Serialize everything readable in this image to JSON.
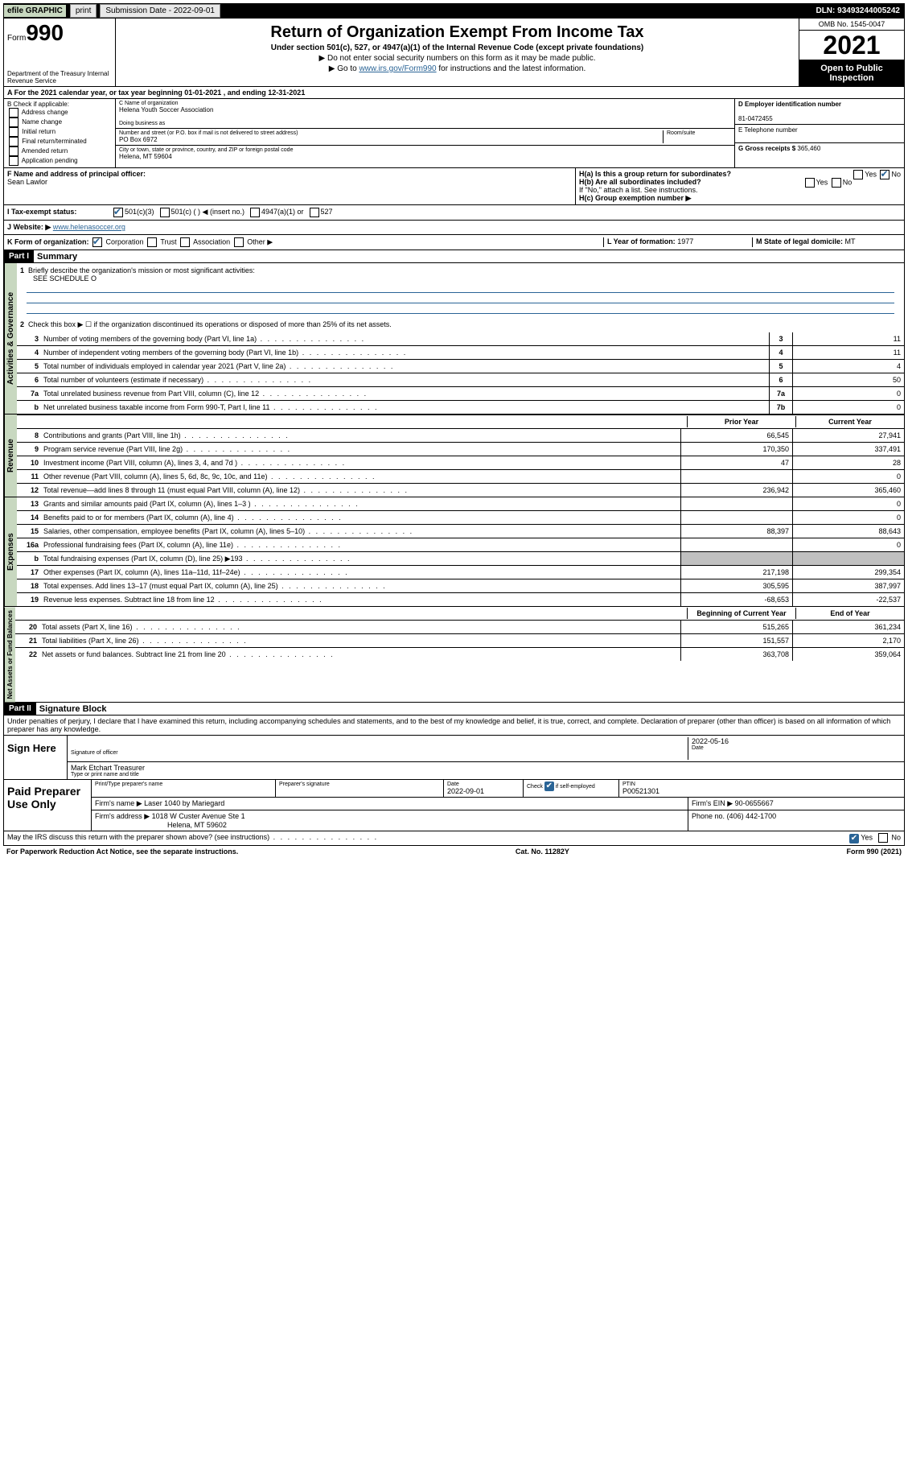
{
  "topbar": {
    "efile": "efile GRAPHIC",
    "print": "print",
    "submission": "Submission Date - 2022-09-01",
    "dln": "DLN: 93493244005242"
  },
  "header": {
    "form_prefix": "Form",
    "form_number": "990",
    "dept": "Department of the Treasury Internal Revenue Service",
    "title": "Return of Organization Exempt From Income Tax",
    "subtitle": "Under section 501(c), 527, or 4947(a)(1) of the Internal Revenue Code (except private foundations)",
    "note1": "▶ Do not enter social security numbers on this form as it may be made public.",
    "note2_pre": "▶ Go to ",
    "note2_link": "www.irs.gov/Form990",
    "note2_post": " for instructions and the latest information.",
    "omb": "OMB No. 1545-0047",
    "year": "2021",
    "open": "Open to Public Inspection"
  },
  "row_a": "A For the 2021 calendar year, or tax year beginning 01-01-2021  , and ending 12-31-2021",
  "col_b": {
    "label": "B Check if applicable:",
    "items": [
      "Address change",
      "Name change",
      "Initial return",
      "Final return/terminated",
      "Amended return",
      "Application pending"
    ]
  },
  "col_c": {
    "name_label": "C Name of organization",
    "name": "Helena Youth Soccer Association",
    "dba_label": "Doing business as",
    "addr_label": "Number and street (or P.O. box if mail is not delivered to street address)",
    "room_label": "Room/suite",
    "addr": "PO Box 6972",
    "city_label": "City or town, state or province, country, and ZIP or foreign postal code",
    "city": "Helena, MT  59604"
  },
  "col_d": {
    "label": "D Employer identification number",
    "ein": "81-0472455",
    "e_label": "E Telephone number",
    "g_label": "G Gross receipts $",
    "g_val": "365,460"
  },
  "f": {
    "label": "F Name and address of principal officer:",
    "name": "Sean Lawlor"
  },
  "h": {
    "ha": "H(a)  Is this a group return for subordinates?",
    "ha_no": "No",
    "hb": "H(b)  Are all subordinates included?",
    "hb_note": "If \"No,\" attach a list. See instructions.",
    "hc": "H(c)  Group exemption number ▶"
  },
  "i": {
    "label": "I  Tax-exempt status:",
    "opts": [
      "501(c)(3)",
      "501(c) (  ) ◀ (insert no.)",
      "4947(a)(1) or",
      "527"
    ]
  },
  "j": {
    "label": "J  Website: ▶",
    "val": "www.helenasoccer.org"
  },
  "k": {
    "label": "K Form of organization:",
    "opts": [
      "Corporation",
      "Trust",
      "Association",
      "Other ▶"
    ]
  },
  "l": {
    "label": "L Year of formation:",
    "val": "1977"
  },
  "m": {
    "label": "M State of legal domicile:",
    "val": "MT"
  },
  "part1": {
    "header": "Part I",
    "title": "Summary",
    "line1_label": "Briefly describe the organization's mission or most significant activities:",
    "line1_val": "SEE SCHEDULE O",
    "line2": "Check this box ▶ ☐ if the organization discontinued its operations or disposed of more than 25% of its net assets.",
    "gov_lines": [
      {
        "n": "3",
        "t": "Number of voting members of the governing body (Part VI, line 1a)",
        "box": "3",
        "v": "11"
      },
      {
        "n": "4",
        "t": "Number of independent voting members of the governing body (Part VI, line 1b)",
        "box": "4",
        "v": "11"
      },
      {
        "n": "5",
        "t": "Total number of individuals employed in calendar year 2021 (Part V, line 2a)",
        "box": "5",
        "v": "4"
      },
      {
        "n": "6",
        "t": "Total number of volunteers (estimate if necessary)",
        "box": "6",
        "v": "50"
      },
      {
        "n": "7a",
        "t": "Total unrelated business revenue from Part VIII, column (C), line 12",
        "box": "7a",
        "v": "0"
      },
      {
        "n": "b",
        "t": "Net unrelated business taxable income from Form 990-T, Part I, line 11",
        "box": "7b",
        "v": "0"
      }
    ],
    "col_headers": {
      "prior": "Prior Year",
      "current": "Current Year"
    },
    "rev_lines": [
      {
        "n": "8",
        "t": "Contributions and grants (Part VIII, line 1h)",
        "p": "66,545",
        "c": "27,941"
      },
      {
        "n": "9",
        "t": "Program service revenue (Part VIII, line 2g)",
        "p": "170,350",
        "c": "337,491"
      },
      {
        "n": "10",
        "t": "Investment income (Part VIII, column (A), lines 3, 4, and 7d )",
        "p": "47",
        "c": "28"
      },
      {
        "n": "11",
        "t": "Other revenue (Part VIII, column (A), lines 5, 6d, 8c, 9c, 10c, and 11e)",
        "p": "",
        "c": "0"
      },
      {
        "n": "12",
        "t": "Total revenue—add lines 8 through 11 (must equal Part VIII, column (A), line 12)",
        "p": "236,942",
        "c": "365,460"
      }
    ],
    "exp_lines": [
      {
        "n": "13",
        "t": "Grants and similar amounts paid (Part IX, column (A), lines 1–3 )",
        "p": "",
        "c": "0"
      },
      {
        "n": "14",
        "t": "Benefits paid to or for members (Part IX, column (A), line 4)",
        "p": "",
        "c": "0"
      },
      {
        "n": "15",
        "t": "Salaries, other compensation, employee benefits (Part IX, column (A), lines 5–10)",
        "p": "88,397",
        "c": "88,643"
      },
      {
        "n": "16a",
        "t": "Professional fundraising fees (Part IX, column (A), line 11e)",
        "p": "",
        "c": "0"
      },
      {
        "n": "b",
        "t": "Total fundraising expenses (Part IX, column (D), line 25) ▶193",
        "p": "grey",
        "c": "grey"
      },
      {
        "n": "17",
        "t": "Other expenses (Part IX, column (A), lines 11a–11d, 11f–24e)",
        "p": "217,198",
        "c": "299,354"
      },
      {
        "n": "18",
        "t": "Total expenses. Add lines 13–17 (must equal Part IX, column (A), line 25)",
        "p": "305,595",
        "c": "387,997"
      },
      {
        "n": "19",
        "t": "Revenue less expenses. Subtract line 18 from line 12",
        "p": "-68,653",
        "c": "-22,537"
      }
    ],
    "na_headers": {
      "begin": "Beginning of Current Year",
      "end": "End of Year"
    },
    "na_lines": [
      {
        "n": "20",
        "t": "Total assets (Part X, line 16)",
        "p": "515,265",
        "c": "361,234"
      },
      {
        "n": "21",
        "t": "Total liabilities (Part X, line 26)",
        "p": "151,557",
        "c": "2,170"
      },
      {
        "n": "22",
        "t": "Net assets or fund balances. Subtract line 21 from line 20",
        "p": "363,708",
        "c": "359,064"
      }
    ],
    "vlabels": {
      "gov": "Activities & Governance",
      "rev": "Revenue",
      "exp": "Expenses",
      "na": "Net Assets or Fund Balances"
    }
  },
  "part2": {
    "header": "Part II",
    "title": "Signature Block",
    "decl": "Under penalties of perjury, I declare that I have examined this return, including accompanying schedules and statements, and to the best of my knowledge and belief, it is true, correct, and complete. Declaration of preparer (other than officer) is based on all information of which preparer has any knowledge."
  },
  "sign": {
    "label": "Sign Here",
    "sig_officer": "Signature of officer",
    "date": "2022-05-16",
    "date_label": "Date",
    "name": "Mark Etchart Treasurer",
    "name_label": "Type or print name and title"
  },
  "prep": {
    "label": "Paid Preparer Use Only",
    "h1": "Print/Type preparer's name",
    "h2": "Preparer's signature",
    "h3": "Date",
    "date": "2022-09-01",
    "h4": "Check ☑ if self-employed",
    "h5": "PTIN",
    "ptin": "P00521301",
    "firm_name_label": "Firm's name    ▶",
    "firm_name": "Laser 1040 by Mariegard",
    "firm_ein_label": "Firm's EIN ▶",
    "firm_ein": "90-0655667",
    "firm_addr_label": "Firm's address ▶",
    "firm_addr1": "1018 W Custer Avenue Ste 1",
    "firm_addr2": "Helena, MT  59602",
    "phone_label": "Phone no.",
    "phone": "(406) 442-1700"
  },
  "footer": {
    "discuss": "May the IRS discuss this return with the preparer shown above? (see instructions)",
    "yes": "Yes",
    "no": "No",
    "paperwork": "For Paperwork Reduction Act Notice, see the separate instructions.",
    "cat": "Cat. No. 11282Y",
    "form": "Form 990 (2021)"
  }
}
